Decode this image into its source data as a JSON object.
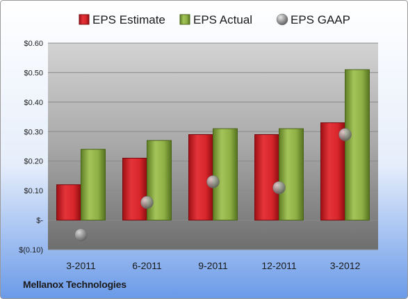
{
  "chart_data": {
    "type": "bar",
    "categories": [
      "3-2011",
      "6-2011",
      "9-2011",
      "12-2011",
      "3-2012"
    ],
    "series": [
      {
        "name": "EPS Estimate",
        "kind": "bar",
        "color": "#d8262b",
        "values": [
          0.12,
          0.21,
          0.29,
          0.29,
          0.33
        ]
      },
      {
        "name": "EPS Actual",
        "kind": "bar",
        "color": "#8fb045",
        "values": [
          0.24,
          0.27,
          0.31,
          0.31,
          0.51
        ]
      },
      {
        "name": "EPS GAAP",
        "kind": "marker",
        "color": "#9a9a9a",
        "values": [
          -0.05,
          0.06,
          0.13,
          0.11,
          0.29
        ]
      }
    ],
    "yticks": [
      {
        "value": 0.6,
        "label": "$0.60"
      },
      {
        "value": 0.5,
        "label": "$0.50"
      },
      {
        "value": 0.4,
        "label": "$0.40"
      },
      {
        "value": 0.3,
        "label": "$0.30"
      },
      {
        "value": 0.2,
        "label": "$0.20"
      },
      {
        "value": 0.1,
        "label": "$0.10"
      },
      {
        "value": 0,
        "label": "$-"
      },
      {
        "value": -0.1,
        "label": "$(0.10)"
      }
    ],
    "ylim": [
      -0.1,
      0.6
    ],
    "grid": true,
    "legend_position": "top"
  },
  "footer": {
    "company": "Mellanox Technologies"
  }
}
